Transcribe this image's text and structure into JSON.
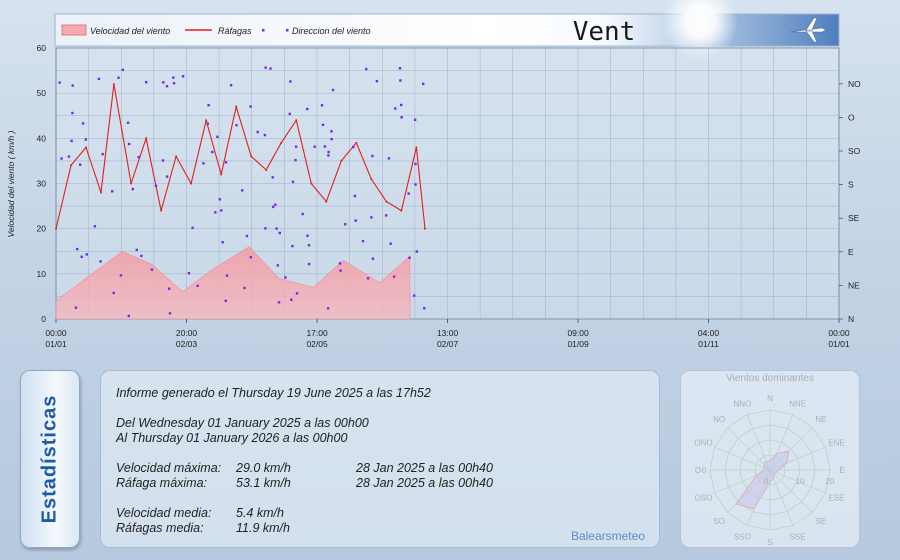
{
  "header": {
    "title": "Vent",
    "legend": {
      "speed": "Velocidad del viento",
      "gust": "Ráfagas",
      "direction": "Direccion del viento"
    }
  },
  "colors": {
    "speed_fill": "#f08c96",
    "gust_line": "#e0201c",
    "direction_dot": "#7a28e6",
    "rose_fill": "#7d5ad2",
    "rose_grid": "#3a9a3a"
  },
  "chart_data": [
    {
      "type": "line",
      "ylabel": "Velocidad del viento ( km/h )",
      "ylim": [
        0,
        60
      ],
      "y_ticks": [
        0,
        10,
        20,
        30,
        40,
        50,
        60
      ],
      "xlim": [
        "2025-01-01 00:00",
        "2026-01-01 00:00"
      ],
      "x_ticks": [
        {
          "time": "00:00",
          "date": "01/01",
          "at": "2025-01-01 00:00"
        },
        {
          "time": "20:00",
          "date": "02/03",
          "at": "2025-03-02 20:00"
        },
        {
          "time": "17:00",
          "date": "02/05",
          "at": "2025-05-02 17:00"
        },
        {
          "time": "13:00",
          "date": "02/07",
          "at": "2025-07-02 13:00"
        },
        {
          "time": "09:00",
          "date": "01/09",
          "at": "2025-09-01 09:00"
        },
        {
          "time": "04:00",
          "date": "01/11",
          "at": "2025-11-01 04:00"
        },
        {
          "time": "00:00",
          "date": "01/01",
          "at": "2026-01-01 00:00"
        }
      ],
      "right_axis_labels": [
        "N",
        "NE",
        "E",
        "SE",
        "S",
        "SO",
        "O",
        "NO"
      ],
      "grid": true,
      "legend_position": "top-left",
      "series": [
        {
          "name": "Velocidad del viento",
          "kind": "area",
          "x_dates": [
            "2025-01-01",
            "2025-01-15",
            "2025-02-01",
            "2025-02-15",
            "2025-03-01",
            "2025-03-15",
            "2025-04-01",
            "2025-04-15",
            "2025-05-01",
            "2025-05-15",
            "2025-06-01",
            "2025-06-15"
          ],
          "values": [
            4,
            9,
            15,
            12,
            6,
            11,
            16,
            9,
            7,
            13,
            8,
            14
          ]
        },
        {
          "name": "Ráfagas",
          "kind": "line",
          "x_dates": [
            "2025-01-01",
            "2025-01-08",
            "2025-01-15",
            "2025-01-22",
            "2025-01-28",
            "2025-02-05",
            "2025-02-12",
            "2025-02-19",
            "2025-02-26",
            "2025-03-05",
            "2025-03-12",
            "2025-03-19",
            "2025-03-26",
            "2025-04-02",
            "2025-04-09",
            "2025-04-16",
            "2025-04-23",
            "2025-04-30",
            "2025-05-07",
            "2025-05-14",
            "2025-05-21",
            "2025-05-28",
            "2025-06-04",
            "2025-06-11",
            "2025-06-18",
            "2025-06-22"
          ],
          "values": [
            20,
            34,
            38,
            28,
            52,
            30,
            40,
            24,
            36,
            30,
            44,
            32,
            47,
            36,
            33,
            39,
            44,
            30,
            26,
            35,
            39,
            31,
            26,
            24,
            38,
            20
          ]
        },
        {
          "name": "Direccion del viento",
          "kind": "scatter",
          "note": "plotted against right axis"
        }
      ]
    },
    {
      "type": "radar",
      "title": "Vientos dominantes",
      "directions": [
        "N",
        "NNE",
        "NE",
        "ENE",
        "E",
        "ESE",
        "SE",
        "SSE",
        "S",
        "SSO",
        "SO",
        "OSO",
        "O",
        "ONO",
        "NO",
        "NNO"
      ],
      "radial_ticks": [
        0,
        10,
        20
      ],
      "values": [
        3,
        6,
        9,
        6,
        3,
        2,
        2,
        3,
        4,
        14,
        16,
        5,
        2,
        2,
        3,
        3
      ]
    }
  ],
  "report": {
    "generated": "Informe generado el Thursday 19 June 2025 a las 17h52",
    "from": "Del Wednesday 01 January 2025 a las 00h00",
    "to": "Al Thursday 01 January 2026 a las 00h00",
    "rows": [
      {
        "label": "Velocidad máxima:",
        "value": "29.0 km/h",
        "when": "28 Jan 2025 a las 00h40"
      },
      {
        "label": "Ráfaga máxima:",
        "value": "53.1 km/h",
        "when": "28 Jan 2025 a las 00h40"
      },
      {
        "label": "Velocidad media:",
        "value": "5.4 km/h",
        "when": ""
      },
      {
        "label": "Ráfagas media:",
        "value": "11.9 km/h",
        "when": ""
      }
    ],
    "brand": "Balearsmeteo"
  },
  "stats_tab": "Estadísticas"
}
